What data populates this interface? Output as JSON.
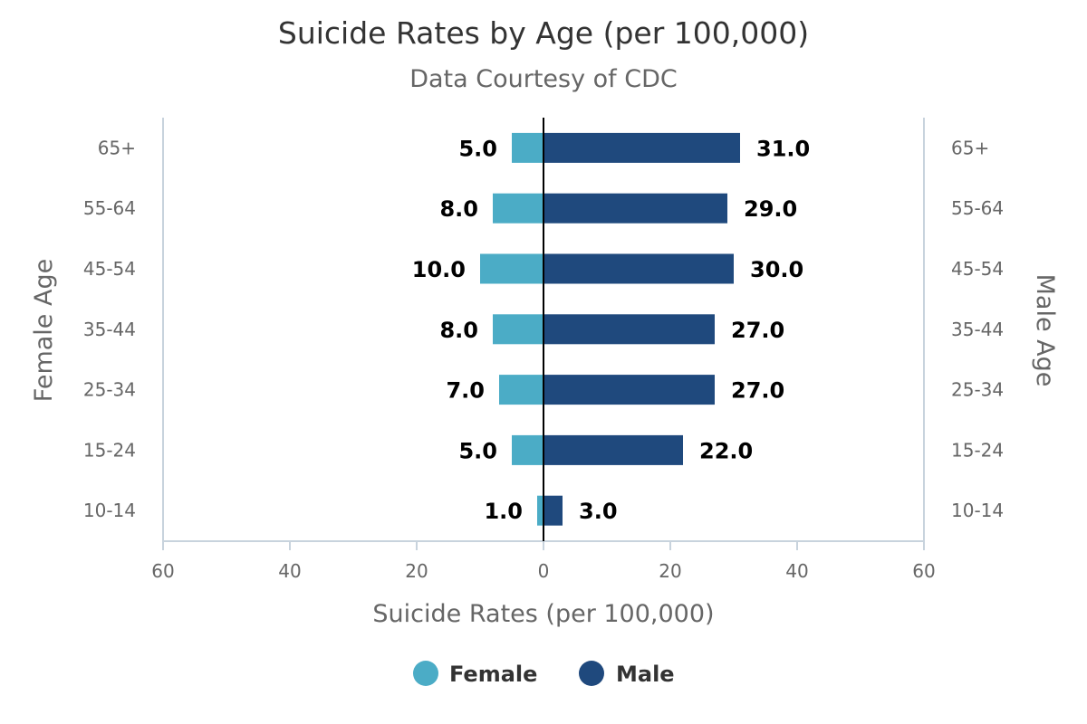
{
  "chart_data": {
    "type": "bar",
    "orientation": "horizontal-diverging",
    "title": "Suicide Rates by Age (per 100,000)",
    "subtitle": "Data Courtesy of CDC",
    "xlabel": "Suicide Rates (per 100,000)",
    "ylabel_left": "Female Age",
    "ylabel_right": "Male Age",
    "xlim": [
      -60,
      60
    ],
    "x_ticks": [
      -60,
      -40,
      -20,
      0,
      20,
      40,
      60
    ],
    "x_tick_labels": [
      "60",
      "40",
      "20",
      "0",
      "20",
      "40",
      "60"
    ],
    "categories": [
      "65+",
      "55-64",
      "45-54",
      "35-44",
      "25-34",
      "15-24",
      "10-14"
    ],
    "series": [
      {
        "name": "Female",
        "color": "#4bacc6",
        "side": "left",
        "values": [
          5.0,
          8.0,
          10.0,
          8.0,
          7.0,
          5.0,
          1.0
        ],
        "data_labels": [
          "5.0",
          "8.0",
          "10.0",
          "8.0",
          "7.0",
          "5.0",
          "1.0"
        ]
      },
      {
        "name": "Male",
        "color": "#1f497d",
        "side": "right",
        "values": [
          31.0,
          29.0,
          30.0,
          27.0,
          27.0,
          22.0,
          3.0
        ],
        "data_labels": [
          "31.0",
          "29.0",
          "30.0",
          "27.0",
          "27.0",
          "22.0",
          "3.0"
        ]
      }
    ],
    "legend_position": "bottom-center",
    "grid": false
  }
}
